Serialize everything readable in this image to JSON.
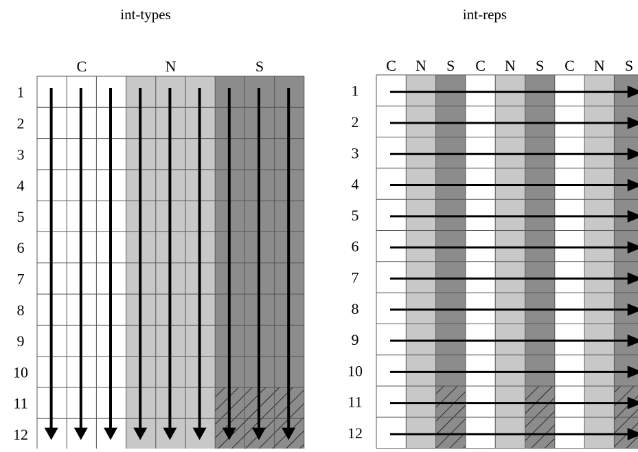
{
  "left_panel": {
    "title": "int-types",
    "group_headers": [
      "C",
      "N",
      "S"
    ],
    "row_labels": [
      "1",
      "2",
      "3",
      "4",
      "5",
      "6",
      "7",
      "8",
      "9",
      "10",
      "11",
      "12"
    ],
    "column_types": [
      "C",
      "C",
      "C",
      "N",
      "N",
      "N",
      "S",
      "S",
      "S"
    ],
    "arrow_direction": "down",
    "hatched_rows": [
      11,
      12
    ],
    "hatched_type": "S"
  },
  "right_panel": {
    "title": "int-reps",
    "column_headers": [
      "C",
      "N",
      "S",
      "C",
      "N",
      "S",
      "C",
      "N",
      "S"
    ],
    "row_labels": [
      "1",
      "2",
      "3",
      "4",
      "5",
      "6",
      "7",
      "8",
      "9",
      "10",
      "11",
      "12"
    ],
    "column_types": [
      "C",
      "N",
      "S",
      "C",
      "N",
      "S",
      "C",
      "N",
      "S"
    ],
    "arrow_direction": "right",
    "hatched_rows": [
      11,
      12
    ],
    "hatched_type": "S"
  },
  "colors": {
    "C": "#ffffff",
    "N": "#c8c8c8",
    "S": "#8c8c8c",
    "grid_line": "#555555",
    "arrow": "#000000",
    "hatch": "#000000"
  }
}
